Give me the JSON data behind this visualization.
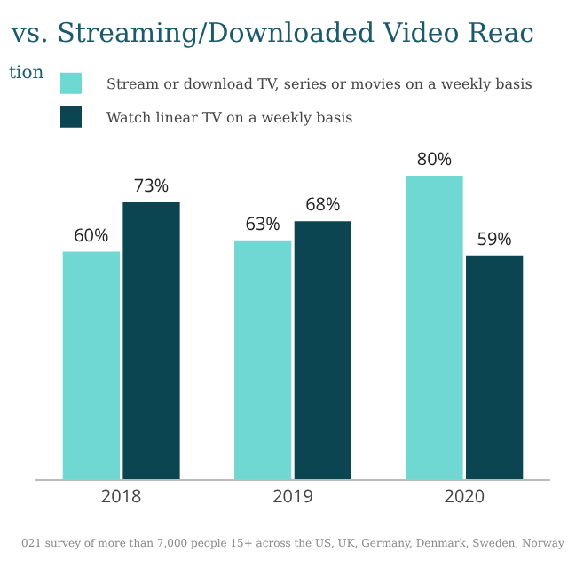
{
  "chart_data": {
    "type": "bar",
    "title": "vs. Streaming/Downloaded Video Reac",
    "subtitle": "tion",
    "categories": [
      "2018",
      "2019",
      "2020"
    ],
    "series": [
      {
        "name": "Stream or download TV, series or movies on a weekly basis",
        "color": "#6fd8d2",
        "values": [
          60,
          63,
          80
        ],
        "value_labels": [
          "60%",
          "63%",
          "80%"
        ]
      },
      {
        "name": "Watch linear TV on a weekly basis",
        "color": "#0b4552",
        "values": [
          73,
          68,
          59
        ],
        "value_labels": [
          "73%",
          "68%",
          "59%"
        ]
      }
    ],
    "legend": "top left",
    "annotations": [
      "021 survey of more than 7,000 people 15+ across the US, UK, Germany, Denmark, Sweden, Norway"
    ]
  }
}
